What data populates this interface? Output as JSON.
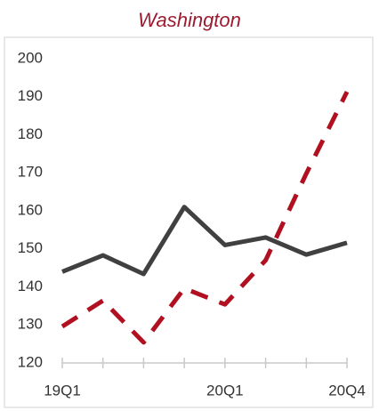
{
  "chart_data": {
    "type": "line",
    "title": "Washington",
    "categories": [
      "19Q1",
      null,
      null,
      null,
      "20Q1",
      null,
      null,
      "20Q4"
    ],
    "series": [
      {
        "color": "#404040",
        "dash": false,
        "values": [
          144,
          148.3,
          143.4,
          161,
          151,
          153,
          148.5,
          151.6
        ]
      },
      {
        "color": "#b01020",
        "dash": true,
        "values": [
          129.6,
          136.4,
          125.4,
          139.6,
          135.4,
          147,
          169.8,
          191.3
        ]
      }
    ],
    "ylim": [
      120,
      200
    ],
    "yticks": [
      120,
      130,
      140,
      150,
      160,
      170,
      180,
      190,
      200
    ],
    "grid": false
  }
}
